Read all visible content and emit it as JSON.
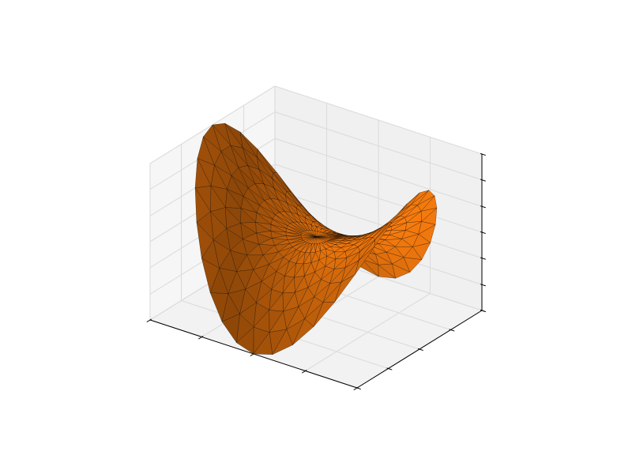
{
  "figure": {
    "background": "#ffffff"
  },
  "chart_data": {
    "type": "surface",
    "surface_kind": "trisurf",
    "function": "z = x^2 - y^2",
    "domain": "disk",
    "radius": 1.0,
    "radial_rings": 8,
    "angular_steps": 36,
    "xlim": [
      -1,
      1
    ],
    "ylim": [
      -1,
      1
    ],
    "zlim": [
      -1,
      1
    ],
    "view": {
      "elevation_deg": 30,
      "azimuth_deg": -60
    },
    "x_ticks": [
      -1.0,
      -0.5,
      0.0,
      0.5,
      1.0
    ],
    "y_ticks": [
      -1.0,
      -0.5,
      0.0,
      0.5,
      1.0
    ],
    "z_ticks": [
      -1.0,
      -0.67,
      -0.33,
      0.0,
      0.33,
      0.67,
      1.0
    ],
    "tick_labels_visible": false,
    "grid": true,
    "pane_color": "#f0f0f0",
    "grid_color": "#dcdcdc",
    "surface_color": "#ff7f0e",
    "edge_color": "#000000",
    "title": "",
    "xlabel": "",
    "ylabel": "",
    "zlabel": ""
  }
}
